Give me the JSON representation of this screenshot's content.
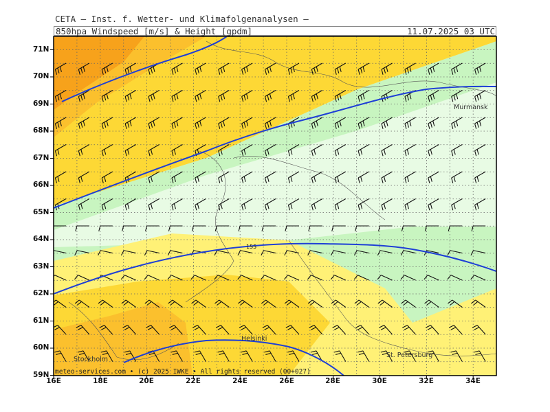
{
  "header": {
    "line1": "CETA — Inst. f. Wetter- und Klimafolgenanalysen —",
    "line2": "850hpa_Windspeed_[m/s]_&_Height_[gpdm]",
    "datetime": "11.07.2025 03 UTC"
  },
  "axes": {
    "lat_labels": [
      "71N",
      "70N",
      "69N",
      "68N",
      "67N",
      "66N",
      "65N",
      "64N",
      "63N",
      "62N",
      "61N",
      "60N",
      "59N"
    ],
    "lon_labels": [
      "16E",
      "18E",
      "20E",
      "22E",
      "24E",
      "26E",
      "28E",
      "30E",
      "32E",
      "34E"
    ]
  },
  "cities": [
    {
      "name": "Murmansk"
    },
    {
      "name": "Helsinki"
    },
    {
      "name": "Stockholm"
    },
    {
      "name": "St. Petersburg"
    }
  ],
  "contour_label": "155",
  "copyright": "meteo-services.com • (c) 2025 IWKE • All rights reserved (00+027)",
  "colors": {
    "orange_dark": "#f7a21b",
    "orange": "#fbc02d",
    "yellow_dark": "#fdd835",
    "yellow": "#fff176",
    "green_light": "#c8f5c0",
    "green_pale": "#e8fbe4",
    "contour": "#1e3fd6"
  }
}
